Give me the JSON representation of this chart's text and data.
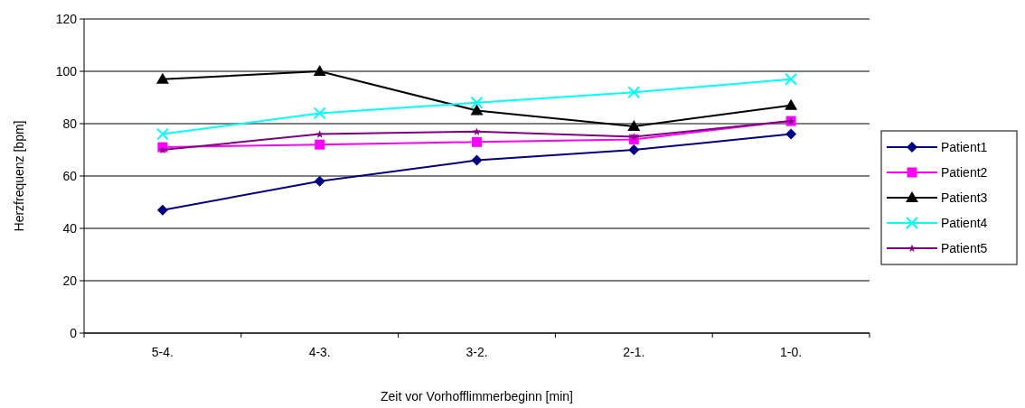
{
  "chart_data": {
    "type": "line",
    "xlabel": "Zeit vor Vorhofflimmerbeginn [min]",
    "ylabel": "Herzfrequenz [bpm]",
    "categories": [
      "5-4.",
      "4-3.",
      "3-2.",
      "2-1.",
      "1-0."
    ],
    "ylim": [
      0,
      120
    ],
    "yticks": [
      0,
      20,
      40,
      60,
      80,
      100,
      120
    ],
    "grid": "y",
    "legend": "right",
    "series": [
      {
        "name": "Patient1",
        "color": "#000080",
        "marker": "diamond",
        "values": [
          47,
          58,
          66,
          70,
          76
        ]
      },
      {
        "name": "Patient2",
        "color": "#ff00ff",
        "marker": "square",
        "values": [
          71,
          72,
          73,
          74,
          81
        ]
      },
      {
        "name": "Patient3",
        "color": "#000000",
        "marker": "triangle",
        "values": [
          97,
          100,
          85,
          79,
          87
        ]
      },
      {
        "name": "Patient4",
        "color": "#00ffff",
        "marker": "cross",
        "values": [
          76,
          84,
          88,
          92,
          97
        ]
      },
      {
        "name": "Patient5",
        "color": "#800080",
        "marker": "star",
        "values": [
          70,
          76,
          77,
          75,
          81
        ]
      }
    ]
  }
}
